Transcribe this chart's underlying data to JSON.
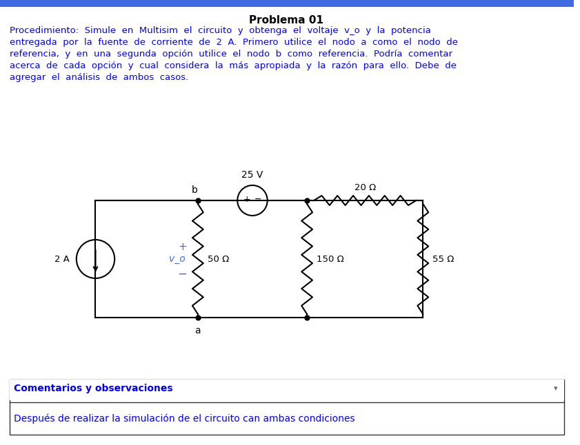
{
  "title": "Problema 01",
  "title_color": "#000000",
  "title_bold": true,
  "body_text": "Procedimiento:  Simule  en  Multisim  el  circuito  y  obtenga  el  voltaje  v_o  y  la  potencia\nentregada  por  la  fuente  de  corriente  de  2  A.  Primero  utilice  el  nodo  a  como  el  nodo  de\nreferencia,  y  en  una  segunda  opción  utilice  el  nodo  b  como  referencia.  Podría  comentar\nacerca  de  cada  opción  y  cual  considera  la  más  apropiada  y  la  razón  para  ello.  Debe  de\nagregar  el  análisis  de  ambos  casos.",
  "body_color": "#0000FF",
  "comment_header": "Comentarios y observaciones",
  "comment_header_color": "#0000FF",
  "comment_header_bold": true,
  "comment_body": "Después de realizar la simulación de el circuito can ambas condiciones",
  "comment_body_color": "#0000FF",
  "bg_color": "#FFFFFF",
  "circuit_line_color": "#000000",
  "circuit_text_color": "#000000",
  "circuit_blue_color": "#4169E1",
  "label_2A": "2 A",
  "label_25V": "25 V",
  "label_20ohm": "20 Ω",
  "label_50ohm": "50 Ω",
  "label_150ohm": "150 Ω",
  "label_55ohm": "55 Ω",
  "label_vo": "v_o",
  "label_plus": "+",
  "label_minus": "−",
  "label_a": "a",
  "label_b": "b",
  "top_bar_color": "#4169E1"
}
